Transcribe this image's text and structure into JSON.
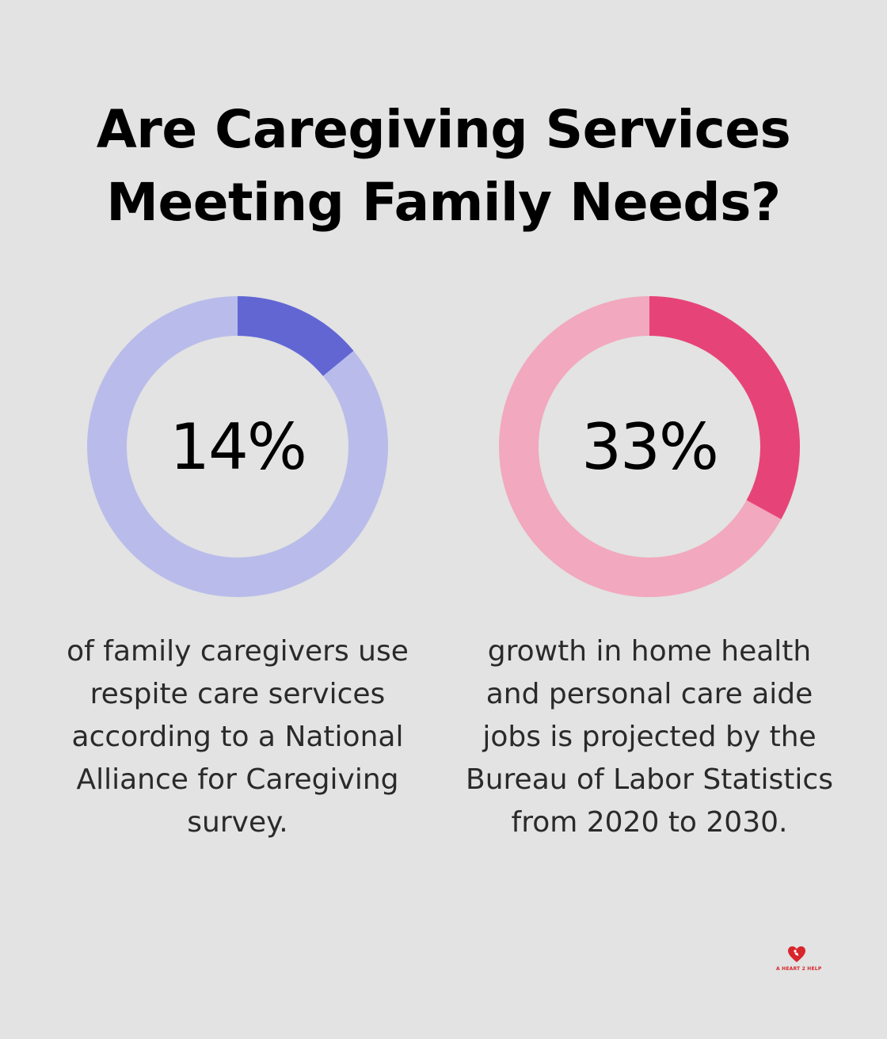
{
  "title": {
    "line1": "Are Caregiving Services",
    "line2": "Meeting Family Needs?"
  },
  "chart_data": [
    {
      "type": "pie",
      "value": 14,
      "label": "14%",
      "caption_lines": [
        "of family caregivers use",
        "respite care services",
        "according to a National",
        "Alliance for Caregiving",
        "survey."
      ],
      "colors": {
        "filled": "#6266d3",
        "track": "#b9bcea"
      }
    },
    {
      "type": "pie",
      "value": 33,
      "label": "33%",
      "caption_lines": [
        "growth in home health",
        "and personal care aide",
        "jobs is projected by the",
        "Bureau of Labor Statistics",
        "from 2020 to 2030."
      ],
      "colors": {
        "filled": "#e64478",
        "track": "#f2a8bf"
      }
    }
  ],
  "logo": {
    "text": "A HEART 2 HELP",
    "icon": "heart-icon",
    "color": "#d8262d"
  }
}
